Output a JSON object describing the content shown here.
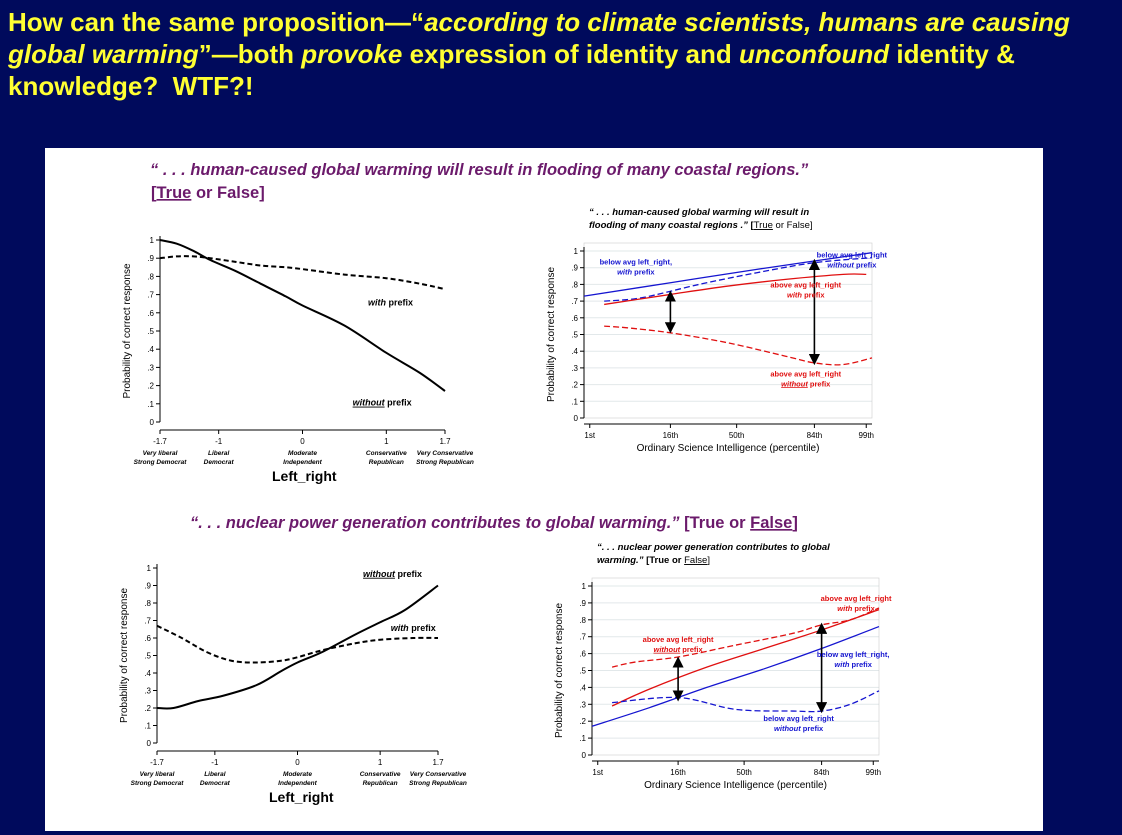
{
  "slide": {
    "title_html": "How can the same proposition—“<i>according to climate scientists, humans are causing global warming</i>”—both <i>provoke</i> expression of identity and <i>unconfound</i> identity &amp; knowledge?&nbsp; WTF?!"
  },
  "sections": {
    "top": {
      "quote": "“ . . . human-caused global warming will result in flooding of many coastal regions.”",
      "tf_true": "True",
      "tf_or": " or False]",
      "tf_open": "["
    },
    "bottom": {
      "quote": "“. . . nuclear power generation contributes to global warming.”",
      "tf_prefix": " [True or ",
      "tf_false": "False",
      "tf_close": "]"
    }
  },
  "colors": {
    "red": "#e01010",
    "blue": "#1515d0",
    "black": "#000000",
    "purple": "#6b1a6b",
    "title": "#ffff33",
    "background": "#000a5c"
  },
  "chart_data": [
    {
      "id": "top-left",
      "type": "line",
      "xlabel": "Left_right",
      "ylabel": "Probability of correct response",
      "xlim": [
        -1.7,
        1.7
      ],
      "ylim": [
        0,
        1
      ],
      "xticks": [
        -1.7,
        -1,
        0,
        1,
        1.7
      ],
      "xtick_labels": [
        "-1.7",
        "-1",
        "0",
        "1",
        "1.7"
      ],
      "xtick_sublabels": [
        [
          "Very liberal",
          "Strong Democrat"
        ],
        [
          "Liberal",
          "Democrat"
        ],
        [
          "Moderate",
          "Independent"
        ],
        [
          "Conservative",
          "Republican"
        ],
        [
          "Very Conservative",
          "Strong Republican"
        ]
      ],
      "yticks": [
        0,
        0.1,
        0.2,
        0.3,
        0.4,
        0.5,
        0.6,
        0.7,
        0.8,
        0.9,
        1
      ],
      "ytick_labels": [
        "0",
        ".1",
        ".2",
        ".3",
        ".4",
        ".5",
        ".6",
        ".7",
        ".8",
        ".9",
        "1"
      ],
      "series": [
        {
          "name": "with prefix",
          "style": "dashed",
          "color": "#000000",
          "x": [
            -1.7,
            -1.5,
            -1.3,
            -1.1,
            -0.8,
            -0.5,
            -0.2,
            0,
            0.5,
            1,
            1.4,
            1.7
          ],
          "y": [
            0.9,
            0.91,
            0.91,
            0.9,
            0.88,
            0.86,
            0.85,
            0.84,
            0.81,
            0.79,
            0.76,
            0.73
          ]
        },
        {
          "name": "without prefix",
          "style": "solid",
          "color": "#000000",
          "x": [
            -1.7,
            -1.5,
            -1.3,
            -1.1,
            -0.8,
            -0.5,
            -0.2,
            0,
            0.5,
            1,
            1.4,
            1.7
          ],
          "y": [
            1.0,
            0.98,
            0.94,
            0.89,
            0.83,
            0.76,
            0.69,
            0.64,
            0.53,
            0.38,
            0.27,
            0.17
          ]
        }
      ],
      "annotations": [
        {
          "parts": [
            [
              "with",
              "i"
            ],
            [
              " prefix",
              ""
            ]
          ],
          "x": 1.05,
          "y": 0.64
        },
        {
          "parts": [
            [
              "without",
              "iu"
            ],
            [
              " prefix",
              ""
            ]
          ],
          "x": 0.95,
          "y": 0.09
        }
      ]
    },
    {
      "id": "top-right",
      "type": "line",
      "title_lines": [
        [
          "“ . . . human-caused global warming will result in",
          ""
        ],
        [
          "flooding of many coastal regions .”",
          " [True or False]"
        ]
      ],
      "title_underline": "True",
      "xlabel": "Ordinary Science Intelligence (percentile)",
      "ylabel": "Probability of correct response",
      "xlim": [
        0,
        100
      ],
      "ylim": [
        0,
        1
      ],
      "xticks": [
        2,
        30,
        53,
        80,
        98
      ],
      "xtick_labels": [
        "1st",
        "16th",
        "50th",
        "84th",
        "99th"
      ],
      "yticks": [
        0,
        0.1,
        0.2,
        0.3,
        0.4,
        0.5,
        0.6,
        0.7,
        0.8,
        0.9,
        1
      ],
      "ytick_labels": [
        "0",
        ".1",
        ".2",
        ".3",
        ".4",
        ".5",
        ".6",
        ".7",
        ".8",
        ".9",
        "1"
      ],
      "series": [
        {
          "name": "below avg left_right, with prefix",
          "style": "solid",
          "color": "#1515d0",
          "x": [
            0,
            30,
            60,
            100
          ],
          "y": [
            0.73,
            0.81,
            0.89,
            0.99
          ]
        },
        {
          "name": "below avg left_right, without prefix",
          "style": "dashed",
          "color": "#1515d0",
          "x": [
            7,
            20,
            40,
            60,
            80,
            100
          ],
          "y": [
            0.7,
            0.72,
            0.8,
            0.87,
            0.93,
            0.96
          ]
        },
        {
          "name": "above avg left_right, with prefix",
          "style": "solid",
          "color": "#e01010",
          "x": [
            7,
            30,
            50,
            70,
            90,
            98
          ],
          "y": [
            0.68,
            0.74,
            0.79,
            0.83,
            0.86,
            0.86
          ]
        },
        {
          "name": "above avg left_right, without prefix",
          "style": "dashed",
          "color": "#e01010",
          "x": [
            7,
            15,
            30,
            50,
            70,
            80,
            90,
            100
          ],
          "y": [
            0.55,
            0.54,
            0.51,
            0.45,
            0.37,
            0.33,
            0.32,
            0.36
          ]
        }
      ],
      "arrows": [
        {
          "x": 30,
          "y1": 0.75,
          "y2": 0.52
        },
        {
          "x": 80,
          "y1": 0.94,
          "y2": 0.33
        }
      ],
      "annotations": [
        {
          "lines": [
            [
              [
                "below avg left_right,",
                ""
              ]
            ],
            [
              [
                "with",
                "i"
              ],
              [
                " prefix",
                ""
              ]
            ]
          ],
          "color": "#1515d0",
          "x": 18,
          "y": 0.92
        },
        {
          "lines": [
            [
              [
                "below avg left_right",
                ""
              ]
            ],
            [
              [
                "without",
                "i"
              ],
              [
                " prefix",
                ""
              ]
            ]
          ],
          "color": "#1515d0",
          "x": 93,
          "y": 0.96
        },
        {
          "lines": [
            [
              [
                "above avg left_right",
                ""
              ]
            ],
            [
              [
                "with",
                "i"
              ],
              [
                " prefix",
                ""
              ]
            ]
          ],
          "color": "#e01010",
          "x": 77,
          "y": 0.78
        },
        {
          "lines": [
            [
              [
                "above avg left_right",
                ""
              ]
            ],
            [
              [
                "without",
                "iu"
              ],
              [
                " prefix",
                ""
              ]
            ]
          ],
          "color": "#e01010",
          "x": 77,
          "y": 0.25
        }
      ]
    },
    {
      "id": "bottom-left",
      "type": "line",
      "xlabel": "Left_right",
      "ylabel": "Probability of correct response",
      "xlim": [
        -1.7,
        1.7
      ],
      "ylim": [
        0,
        1
      ],
      "xticks": [
        -1.7,
        -1,
        0,
        1,
        1.7
      ],
      "xtick_labels": [
        "-1.7",
        "-1",
        "0",
        "1",
        "1.7"
      ],
      "xtick_sublabels": [
        [
          "Very liberal",
          "Strong Democrat"
        ],
        [
          "Liberal",
          "Democrat"
        ],
        [
          "Moderate",
          "Independent"
        ],
        [
          "Conservative",
          "Republican"
        ],
        [
          "Very Conservative",
          "Strong Republican"
        ]
      ],
      "yticks": [
        0,
        0.1,
        0.2,
        0.3,
        0.4,
        0.5,
        0.6,
        0.7,
        0.8,
        0.9,
        1
      ],
      "ytick_labels": [
        "0",
        ".1",
        ".2",
        ".3",
        ".4",
        ".5",
        ".6",
        ".7",
        ".8",
        ".9",
        "1"
      ],
      "series": [
        {
          "name": "with prefix",
          "style": "dashed",
          "color": "#000000",
          "x": [
            -1.7,
            -1.4,
            -1.1,
            -0.8,
            -0.5,
            -0.2,
            0,
            0.3,
            0.7,
            1,
            1.4,
            1.7
          ],
          "y": [
            0.67,
            0.6,
            0.52,
            0.47,
            0.46,
            0.47,
            0.49,
            0.53,
            0.57,
            0.59,
            0.6,
            0.6
          ]
        },
        {
          "name": "without prefix",
          "style": "solid",
          "color": "#000000",
          "x": [
            -1.7,
            -1.5,
            -1.2,
            -0.9,
            -0.5,
            -0.2,
            0,
            0.3,
            0.7,
            1,
            1.3,
            1.7
          ],
          "y": [
            0.2,
            0.2,
            0.24,
            0.27,
            0.33,
            0.41,
            0.46,
            0.52,
            0.62,
            0.69,
            0.76,
            0.9
          ]
        }
      ],
      "annotations": [
        {
          "parts": [
            [
              "without",
              "iu"
            ],
            [
              " prefix",
              ""
            ]
          ],
          "x": 1.15,
          "y": 0.95
        },
        {
          "parts": [
            [
              "with",
              "i"
            ],
            [
              " prefix",
              ""
            ]
          ],
          "x": 1.4,
          "y": 0.64
        }
      ]
    },
    {
      "id": "bottom-right",
      "type": "line",
      "title_lines": [
        [
          "“. . . nuclear power generation contributes to global",
          ""
        ],
        [
          "warming.”",
          " [True or False]"
        ]
      ],
      "title_underline": "False",
      "xlabel": "Ordinary Science Intelligence (percentile)",
      "ylabel": "Probability of correct response",
      "xlim": [
        0,
        100
      ],
      "ylim": [
        0,
        1
      ],
      "xticks": [
        2,
        30,
        53,
        80,
        98
      ],
      "xtick_labels": [
        "1st",
        "16th",
        "50th",
        "84th",
        "99th"
      ],
      "yticks": [
        0,
        0.1,
        0.2,
        0.3,
        0.4,
        0.5,
        0.6,
        0.7,
        0.8,
        0.9,
        1
      ],
      "ytick_labels": [
        "0",
        ".1",
        ".2",
        ".3",
        ".4",
        ".5",
        ".6",
        ".7",
        ".8",
        ".9",
        "1"
      ],
      "series": [
        {
          "name": "above avg left_right, with prefix",
          "style": "solid",
          "color": "#e01010",
          "x": [
            7,
            20,
            40,
            60,
            80,
            100
          ],
          "y": [
            0.29,
            0.39,
            0.52,
            0.63,
            0.74,
            0.86
          ]
        },
        {
          "name": "above avg left_right, without prefix",
          "style": "dashed",
          "color": "#e01010",
          "x": [
            7,
            15,
            30,
            50,
            70,
            80,
            90,
            100
          ],
          "y": [
            0.52,
            0.55,
            0.58,
            0.65,
            0.72,
            0.77,
            0.8,
            0.87
          ]
        },
        {
          "name": "below avg left_right, with prefix",
          "style": "solid",
          "color": "#1515d0",
          "x": [
            0,
            20,
            40,
            60,
            80,
            100
          ],
          "y": [
            0.17,
            0.28,
            0.4,
            0.51,
            0.63,
            0.76
          ]
        },
        {
          "name": "below avg left_right, without prefix",
          "style": "dashed",
          "color": "#1515d0",
          "x": [
            7,
            30,
            50,
            70,
            80,
            90,
            100
          ],
          "y": [
            0.31,
            0.34,
            0.27,
            0.26,
            0.26,
            0.3,
            0.38
          ]
        }
      ],
      "arrows": [
        {
          "x": 30,
          "y1": 0.57,
          "y2": 0.33
        },
        {
          "x": 80,
          "y1": 0.77,
          "y2": 0.26
        }
      ],
      "annotations": [
        {
          "lines": [
            [
              [
                "above avg left_right",
                ""
              ]
            ],
            [
              [
                "with",
                "i"
              ],
              [
                " prefix",
                ""
              ]
            ]
          ],
          "color": "#e01010",
          "x": 92,
          "y": 0.91
        },
        {
          "lines": [
            [
              [
                "above avg left_right",
                ""
              ]
            ],
            [
              [
                "without",
                "iu"
              ],
              [
                " prefix",
                ""
              ]
            ]
          ],
          "color": "#e01010",
          "x": 30,
          "y": 0.67
        },
        {
          "lines": [
            [
              [
                "below avg left_right,",
                ""
              ]
            ],
            [
              [
                "with",
                "i"
              ],
              [
                " prefix",
                ""
              ]
            ]
          ],
          "color": "#1515d0",
          "x": 91,
          "y": 0.58
        },
        {
          "lines": [
            [
              [
                "below avg left_right",
                ""
              ]
            ],
            [
              [
                "without",
                "i"
              ],
              [
                " prefix",
                ""
              ]
            ]
          ],
          "color": "#1515d0",
          "x": 72,
          "y": 0.2
        }
      ]
    }
  ]
}
